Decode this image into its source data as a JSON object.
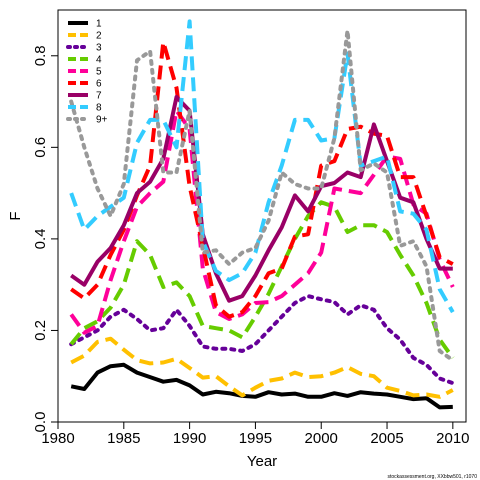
{
  "chart_data": {
    "type": "line",
    "title": "",
    "xlabel": "Year",
    "ylabel": "F",
    "xlim": [
      1980,
      2011
    ],
    "ylim": [
      0.0,
      0.9
    ],
    "x_ticks": [
      1980,
      1985,
      1990,
      1995,
      2000,
      2005,
      2010
    ],
    "y_ticks": [
      0.0,
      0.2,
      0.4,
      0.6,
      0.8
    ],
    "y_tick_labels": [
      "0.0",
      "0.2",
      "0.4",
      "0.6",
      "0.8"
    ],
    "grid": false,
    "legend_position": "top-left",
    "x": [
      1981,
      1982,
      1983,
      1984,
      1985,
      1986,
      1987,
      1988,
      1989,
      1990,
      1991,
      1992,
      1993,
      1994,
      1995,
      1996,
      1997,
      1998,
      1999,
      2000,
      2001,
      2002,
      2003,
      2004,
      2005,
      2006,
      2007,
      2008,
      2009,
      2010
    ],
    "series": [
      {
        "name": "1",
        "color": "#000000",
        "dash": "solid",
        "values": [
          0.078,
          0.072,
          0.108,
          0.122,
          0.125,
          0.108,
          0.098,
          0.088,
          0.092,
          0.08,
          0.06,
          0.066,
          0.063,
          0.057,
          0.055,
          0.065,
          0.06,
          0.062,
          0.055,
          0.055,
          0.063,
          0.057,
          0.065,
          0.062,
          0.06,
          0.055,
          0.05,
          0.052,
          0.032,
          0.033
        ]
      },
      {
        "name": "2",
        "color": "#FFC000",
        "dash": "dashed",
        "values": [
          0.13,
          0.145,
          0.175,
          0.182,
          0.158,
          0.135,
          0.128,
          0.13,
          0.138,
          0.118,
          0.097,
          0.1,
          0.078,
          0.058,
          0.075,
          0.09,
          0.095,
          0.108,
          0.098,
          0.1,
          0.108,
          0.12,
          0.105,
          0.1,
          0.075,
          0.068,
          0.058,
          0.06,
          0.055,
          0.07
        ]
      },
      {
        "name": "3",
        "color": "#660099",
        "dash": "dotted",
        "values": [
          0.17,
          0.185,
          0.2,
          0.23,
          0.245,
          0.225,
          0.2,
          0.205,
          0.245,
          0.21,
          0.165,
          0.16,
          0.16,
          0.155,
          0.17,
          0.2,
          0.23,
          0.26,
          0.275,
          0.268,
          0.262,
          0.235,
          0.255,
          0.245,
          0.205,
          0.18,
          0.14,
          0.125,
          0.095,
          0.085
        ]
      },
      {
        "name": "4",
        "color": "#66CC00",
        "dash": "dashed",
        "values": [
          0.17,
          0.205,
          0.22,
          0.25,
          0.3,
          0.395,
          0.365,
          0.295,
          0.305,
          0.275,
          0.21,
          0.205,
          0.2,
          0.185,
          0.23,
          0.28,
          0.34,
          0.4,
          0.45,
          0.48,
          0.47,
          0.415,
          0.43,
          0.43,
          0.415,
          0.365,
          0.32,
          0.26,
          0.18,
          0.14
        ]
      },
      {
        "name": "5",
        "color": "#FF0099",
        "dash": "dashed",
        "values": [
          0.235,
          0.195,
          0.21,
          0.31,
          0.395,
          0.47,
          0.5,
          0.525,
          0.68,
          0.64,
          0.335,
          0.24,
          0.225,
          0.235,
          0.26,
          0.262,
          0.275,
          0.3,
          0.325,
          0.37,
          0.51,
          0.505,
          0.5,
          0.54,
          0.58,
          0.575,
          0.475,
          0.455,
          0.355,
          0.295
        ]
      },
      {
        "name": "6",
        "color": "#FF0000",
        "dash": "dashed",
        "values": [
          0.29,
          0.27,
          0.3,
          0.365,
          0.42,
          0.495,
          0.56,
          0.83,
          0.73,
          0.515,
          0.385,
          0.255,
          0.23,
          0.24,
          0.275,
          0.325,
          0.335,
          0.405,
          0.41,
          0.56,
          0.57,
          0.64,
          0.645,
          0.63,
          0.625,
          0.535,
          0.535,
          0.45,
          0.36,
          0.345
        ]
      },
      {
        "name": "7",
        "color": "#990066",
        "dash": "solid",
        "values": [
          0.32,
          0.3,
          0.35,
          0.38,
          0.43,
          0.5,
          0.525,
          0.575,
          0.71,
          0.68,
          0.41,
          0.325,
          0.265,
          0.275,
          0.32,
          0.375,
          0.425,
          0.495,
          0.46,
          0.515,
          0.522,
          0.545,
          0.535,
          0.65,
          0.57,
          0.49,
          0.48,
          0.4,
          0.335,
          0.335
        ]
      },
      {
        "name": "8",
        "color": "#33CCFF",
        "dash": "dashed",
        "values": [
          0.5,
          0.42,
          0.45,
          0.47,
          0.49,
          0.61,
          0.66,
          0.66,
          0.6,
          0.875,
          0.395,
          0.33,
          0.31,
          0.325,
          0.37,
          0.48,
          0.56,
          0.66,
          0.66,
          0.615,
          0.62,
          0.805,
          0.56,
          0.57,
          0.58,
          0.46,
          0.455,
          0.42,
          0.29,
          0.24
        ]
      },
      {
        "name": "9+",
        "color": "#999999",
        "dash": "dotted",
        "values": [
          0.7,
          0.6,
          0.51,
          0.45,
          0.52,
          0.79,
          0.81,
          0.545,
          0.545,
          0.68,
          0.37,
          0.375,
          0.345,
          0.37,
          0.38,
          0.44,
          0.545,
          0.52,
          0.51,
          0.51,
          0.62,
          0.855,
          0.55,
          0.565,
          0.545,
          0.385,
          0.395,
          0.34,
          0.155,
          0.135
        ]
      }
    ]
  },
  "credit": "stockassessment.org, XXbbw501, r1070"
}
